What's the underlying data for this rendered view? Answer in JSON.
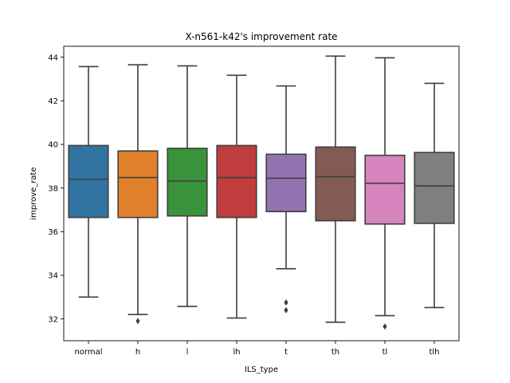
{
  "chart_data": {
    "type": "box",
    "title": "X-n561-k42's improvement rate",
    "xlabel": "ILS_type",
    "ylabel": "improve_rate",
    "ylim": [
      31.0,
      44.5
    ],
    "yticks": [
      32,
      34,
      36,
      38,
      40,
      42,
      44
    ],
    "grid": false,
    "categories": [
      "normal",
      "h",
      "l",
      "lh",
      "t",
      "th",
      "tl",
      "tlh"
    ],
    "colors": [
      "#3274a1",
      "#e1812c",
      "#3a923a",
      "#c03d3e",
      "#9372b2",
      "#845b53",
      "#d684bd",
      "#7f7f7f"
    ],
    "boxes": [
      {
        "whisker_low": 33.0,
        "q1": 36.65,
        "median": 38.4,
        "q3": 39.95,
        "whisker_high": 43.57,
        "outliers": []
      },
      {
        "whisker_low": 32.2,
        "q1": 36.65,
        "median": 38.48,
        "q3": 39.7,
        "whisker_high": 43.65,
        "outliers": [
          31.9
        ]
      },
      {
        "whisker_low": 32.57,
        "q1": 36.72,
        "median": 38.32,
        "q3": 39.82,
        "whisker_high": 43.6,
        "outliers": []
      },
      {
        "whisker_low": 32.04,
        "q1": 36.65,
        "median": 38.48,
        "q3": 39.95,
        "whisker_high": 43.17,
        "outliers": []
      },
      {
        "whisker_low": 34.3,
        "q1": 36.92,
        "median": 38.45,
        "q3": 39.55,
        "whisker_high": 42.68,
        "outliers": [
          32.75,
          32.4
        ]
      },
      {
        "whisker_low": 31.85,
        "q1": 36.5,
        "median": 38.52,
        "q3": 39.88,
        "whisker_high": 44.05,
        "outliers": []
      },
      {
        "whisker_low": 32.15,
        "q1": 36.35,
        "median": 38.22,
        "q3": 39.5,
        "whisker_high": 43.97,
        "outliers": [
          31.65
        ]
      },
      {
        "whisker_low": 32.52,
        "q1": 36.38,
        "median": 38.1,
        "q3": 39.63,
        "whisker_high": 42.8,
        "outliers": []
      }
    ]
  }
}
